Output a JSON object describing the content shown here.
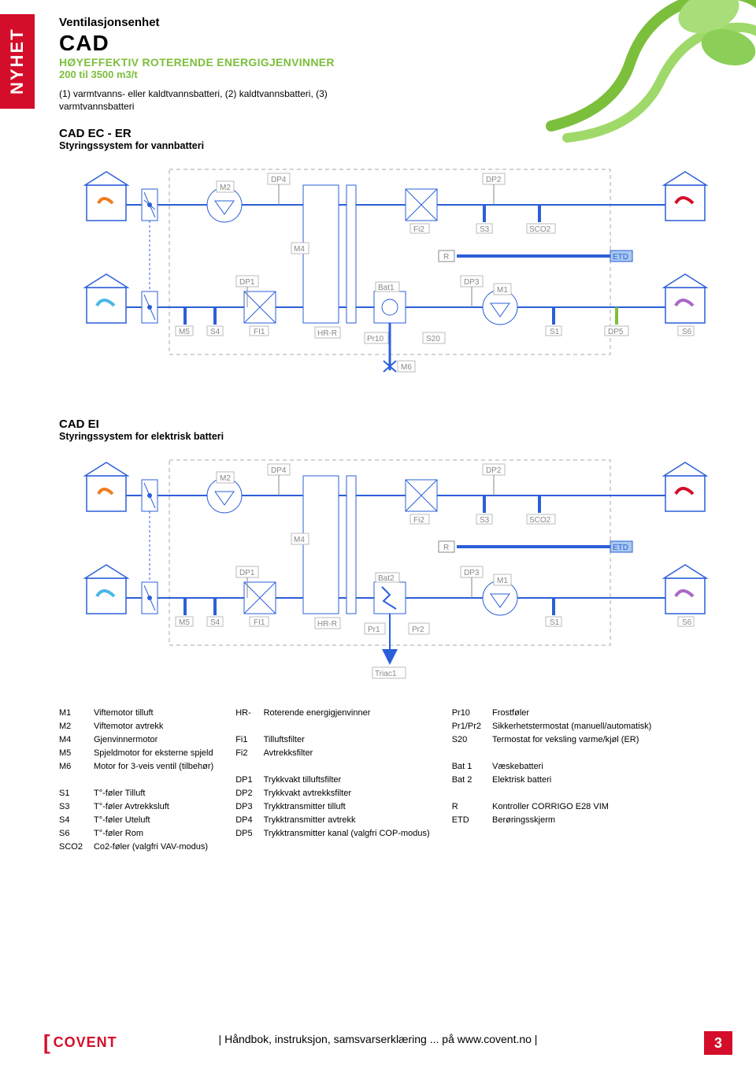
{
  "sideTab": "NYHET",
  "header": {
    "title": "Ventilasjonsenhet",
    "cad": "CAD",
    "line1": "HØYEFFEKTIV ROTERENDE ENERGIGJENVINNER",
    "line2": "200 til 3500 m3/t",
    "note": "(1) varmtvanns- eller kaldtvannsbatteri, (2) kaldtvannsbatteri, (3) varmtvannsbatteri"
  },
  "colors": {
    "red": "#d40e2a",
    "green": "#7cbf3c",
    "blue": "#2b5fd9",
    "lightblue": "#a8c8f0",
    "orange": "#f07c1e",
    "cyan": "#4bb7e8",
    "purple": "#a868c8",
    "boxgrey": "#cccccc",
    "dashgrey": "#aaaaaa"
  },
  "section1": {
    "title": "CAD EC - ER",
    "sub": "Styringssystem for vannbatteri"
  },
  "section2": {
    "title": "CAD EI",
    "sub": "Styringssystem for elektrisk batteri"
  },
  "diagLabels": {
    "DP4": "DP4",
    "DP2": "DP2",
    "DP1": "DP1",
    "DP3": "DP3",
    "DP5": "DP5",
    "M2": "M2",
    "M4": "M4",
    "M5": "M5",
    "M1": "M1",
    "M6": "M6",
    "Fi2": "Fi2",
    "Fi1": "FI1",
    "S3": "S3",
    "S4": "S4",
    "S1": "S1",
    "S6": "S6",
    "SCO2": "SCO2",
    "ETD": "ETD",
    "HRR": "HR-R",
    "Bat1": "Bat1",
    "Bat2": "Bat2",
    "S20": "S20",
    "Pr10": "Pr10",
    "R": "R",
    "Pr1": "Pr1",
    "Pr2": "Pr2",
    "Triac1": "Triac1"
  },
  "legend": {
    "col1": [
      [
        "M1",
        "Viftemotor tilluft"
      ],
      [
        "M2",
        "Viftemotor avtrekk"
      ],
      [
        "M4",
        "Gjenvinnermotor"
      ],
      [
        "M5",
        "Spjeldmotor for eksterne spjeld"
      ],
      [
        "M6",
        "Motor for 3-veis ventil (tilbehør)"
      ],
      [
        "",
        ""
      ],
      [
        "S1",
        "T°-føler Tilluft"
      ],
      [
        "S3",
        "T°-føler Avtrekksluft"
      ],
      [
        "S4",
        "T°-føler Uteluft"
      ],
      [
        "S6",
        "T°-føler Rom"
      ],
      [
        "SCO2",
        "Co2-føler (valgfri VAV-modus)"
      ]
    ],
    "col2": [
      [
        "HR-",
        "Roterende energigjenvinner"
      ],
      [
        "",
        ""
      ],
      [
        "Fi1",
        "Tilluftsfilter"
      ],
      [
        "Fi2",
        "Avtrekksfilter"
      ],
      [
        "",
        ""
      ],
      [
        "DP1",
        "Trykkvakt tilluftsfilter"
      ],
      [
        "DP2",
        "Trykkvakt avtrekksfilter"
      ],
      [
        "DP3",
        "Trykktransmitter tilluft"
      ],
      [
        "DP4",
        "Trykktransmitter avtrekk"
      ],
      [
        "DP5",
        "Trykktransmitter kanal (valgfri COP-modus)"
      ]
    ],
    "col3": [
      [
        "Pr10",
        "Frostføler"
      ],
      [
        "Pr1/Pr2",
        "Sikkerhetstermostat (manuell/automatisk)"
      ],
      [
        "S20",
        "Termostat for veksling varme/kjøl (ER)"
      ],
      [
        "",
        ""
      ],
      [
        "Bat 1",
        "Væskebatteri"
      ],
      [
        "Bat 2",
        "Elektrisk batteri"
      ],
      [
        "",
        ""
      ],
      [
        "R",
        "Kontroller CORRIGO E28 VIM"
      ],
      [
        "ETD",
        "Berøringsskjerm"
      ]
    ]
  },
  "footer": {
    "logo": "COVENT",
    "text": "| Håndbok, instruksjon, samsvarserklæring ... på www.covent.no |",
    "page": "3"
  }
}
